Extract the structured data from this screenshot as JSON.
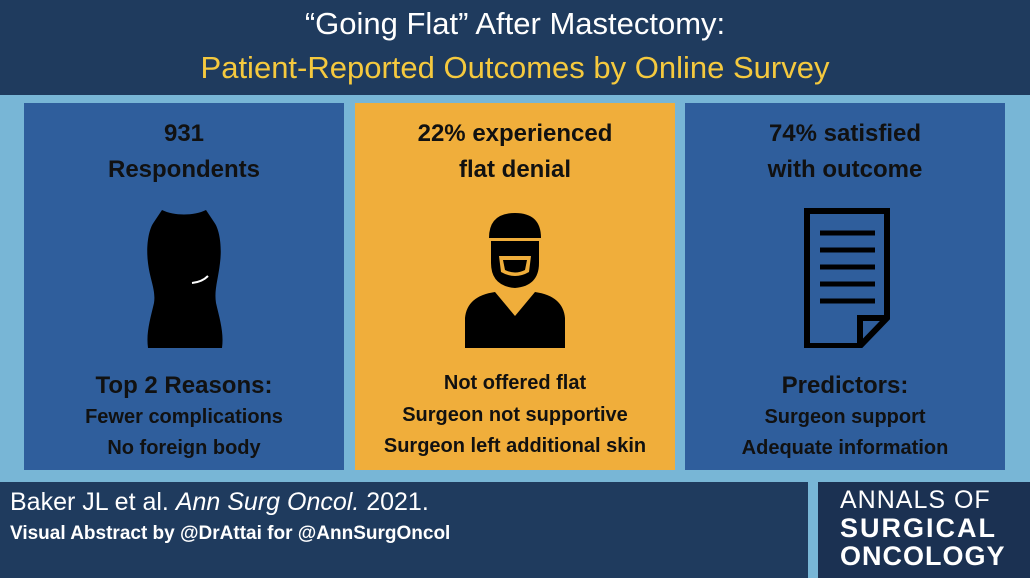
{
  "header": {
    "title_line1": "“Going Flat” After Mastectomy:",
    "title_line2": "Patient-Reported Outcomes by Online Survey"
  },
  "panels": [
    {
      "headline": [
        "931",
        "Respondents"
      ],
      "subheading": "Top 2 Reasons:",
      "items": [
        "Fewer complications",
        "No foreign body"
      ]
    },
    {
      "headline": [
        "22% experienced",
        "flat denial"
      ],
      "items": [
        "Not offered flat",
        "Surgeon not supportive",
        "Surgeon left additional skin"
      ]
    },
    {
      "headline": [
        "74% satisfied",
        "with outcome"
      ],
      "subheading": "Predictors:",
      "items": [
        "Surgeon support",
        "Adequate information"
      ]
    }
  ],
  "footer": {
    "citation_authors": "Baker JL et al.",
    "citation_journal": "Ann Surg Oncol.",
    "citation_year": "2021.",
    "credit": "Visual Abstract by @DrAttai for @AnnSurgOncol"
  },
  "logo": {
    "line1": "ANNALS OF",
    "line2": "SURGICAL",
    "line3": "ONCOLOGY"
  }
}
